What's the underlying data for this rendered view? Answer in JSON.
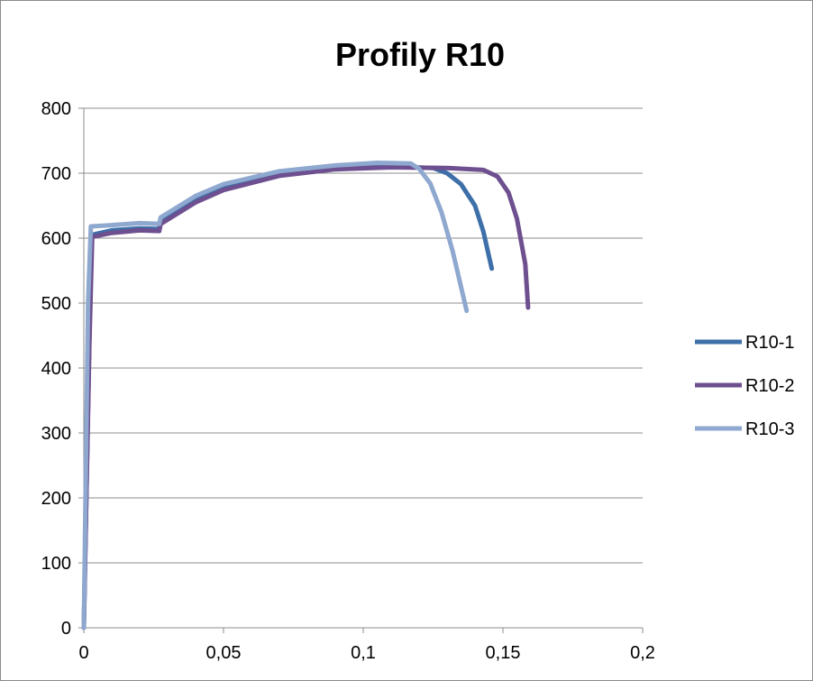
{
  "chart_data": {
    "type": "line",
    "title": "Profily R10",
    "xlabel": "",
    "ylabel": "",
    "xlim": [
      0,
      0.2
    ],
    "ylim": [
      0,
      800
    ],
    "x_ticks": [
      "0",
      "0,05",
      "0,1",
      "0,15",
      "0,2"
    ],
    "y_ticks": [
      "0",
      "100",
      "200",
      "300",
      "400",
      "500",
      "600",
      "700",
      "800"
    ],
    "grid": "horizontal",
    "legend_position": "right",
    "series": [
      {
        "name": "R10-1",
        "color": "#3e6fa8",
        "points": [
          [
            0,
            0
          ],
          [
            0.002,
            450
          ],
          [
            0.0028,
            605
          ],
          [
            0.01,
            612
          ],
          [
            0.02,
            615
          ],
          [
            0.027,
            614
          ],
          [
            0.0275,
            628
          ],
          [
            0.04,
            660
          ],
          [
            0.05,
            678
          ],
          [
            0.07,
            698
          ],
          [
            0.09,
            707
          ],
          [
            0.11,
            710
          ],
          [
            0.125,
            708
          ],
          [
            0.13,
            700
          ],
          [
            0.135,
            683
          ],
          [
            0.14,
            650
          ],
          [
            0.143,
            610
          ],
          [
            0.146,
            553
          ]
        ]
      },
      {
        "name": "R10-2",
        "color": "#6e4f8f",
        "points": [
          [
            0,
            0
          ],
          [
            0.002,
            440
          ],
          [
            0.003,
            602
          ],
          [
            0.01,
            608
          ],
          [
            0.02,
            612
          ],
          [
            0.027,
            611
          ],
          [
            0.0275,
            622
          ],
          [
            0.04,
            655
          ],
          [
            0.05,
            674
          ],
          [
            0.07,
            696
          ],
          [
            0.09,
            706
          ],
          [
            0.11,
            709
          ],
          [
            0.13,
            708
          ],
          [
            0.143,
            705
          ],
          [
            0.148,
            695
          ],
          [
            0.152,
            670
          ],
          [
            0.155,
            630
          ],
          [
            0.158,
            560
          ],
          [
            0.159,
            493
          ]
        ]
      },
      {
        "name": "R10-3",
        "color": "#8ea8cf",
        "points": [
          [
            0,
            0
          ],
          [
            0.0015,
            500
          ],
          [
            0.0025,
            618
          ],
          [
            0.01,
            620
          ],
          [
            0.02,
            623
          ],
          [
            0.027,
            622
          ],
          [
            0.0275,
            632
          ],
          [
            0.04,
            665
          ],
          [
            0.05,
            683
          ],
          [
            0.07,
            703
          ],
          [
            0.09,
            712
          ],
          [
            0.105,
            716
          ],
          [
            0.117,
            715
          ],
          [
            0.12,
            707
          ],
          [
            0.124,
            684
          ],
          [
            0.128,
            640
          ],
          [
            0.132,
            580
          ],
          [
            0.135,
            525
          ],
          [
            0.137,
            488
          ]
        ]
      }
    ]
  }
}
